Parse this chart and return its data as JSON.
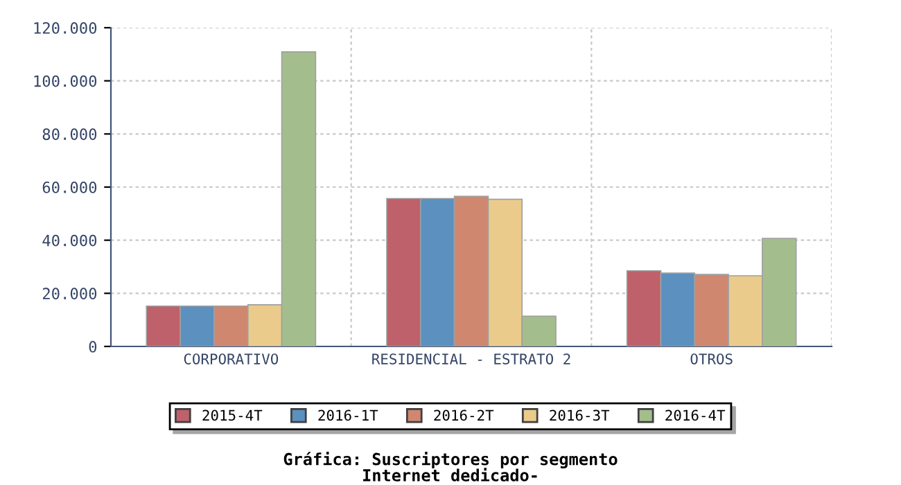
{
  "chart_data": {
    "type": "bar",
    "title": "Gráfica: Suscriptores por segmento",
    "subtitle": "Internet dedicado-",
    "categories": [
      "CORPORATIVO",
      "RESIDENCIAL - ESTRATO 2",
      "OTROS"
    ],
    "series": [
      {
        "name": "2015-4T",
        "color": "#be616a",
        "values": [
          15200,
          55700,
          28500
        ]
      },
      {
        "name": "2016-1T",
        "color": "#5b90bf",
        "values": [
          15200,
          55700,
          27600
        ]
      },
      {
        "name": "2016-2T",
        "color": "#d08770",
        "values": [
          15200,
          56500,
          27100
        ]
      },
      {
        "name": "2016-3T",
        "color": "#ebcb8b",
        "values": [
          15700,
          55400,
          26600
        ]
      },
      {
        "name": "2016-4T",
        "color": "#a3be8c",
        "values": [
          110900,
          11400,
          40700
        ]
      }
    ],
    "ylim": [
      0,
      120000
    ],
    "yticks": [
      0,
      {
        "value": 20000,
        "label": "20.000"
      },
      {
        "value": 40000,
        "label": "40.000"
      },
      {
        "value": 60000,
        "label": "60.000"
      },
      {
        "value": 80000,
        "label": "80.000"
      },
      {
        "value": 100000,
        "label": "100.000"
      },
      {
        "value": 120000,
        "label": "120.000"
      }
    ],
    "grid": true,
    "legend": "bottom"
  }
}
